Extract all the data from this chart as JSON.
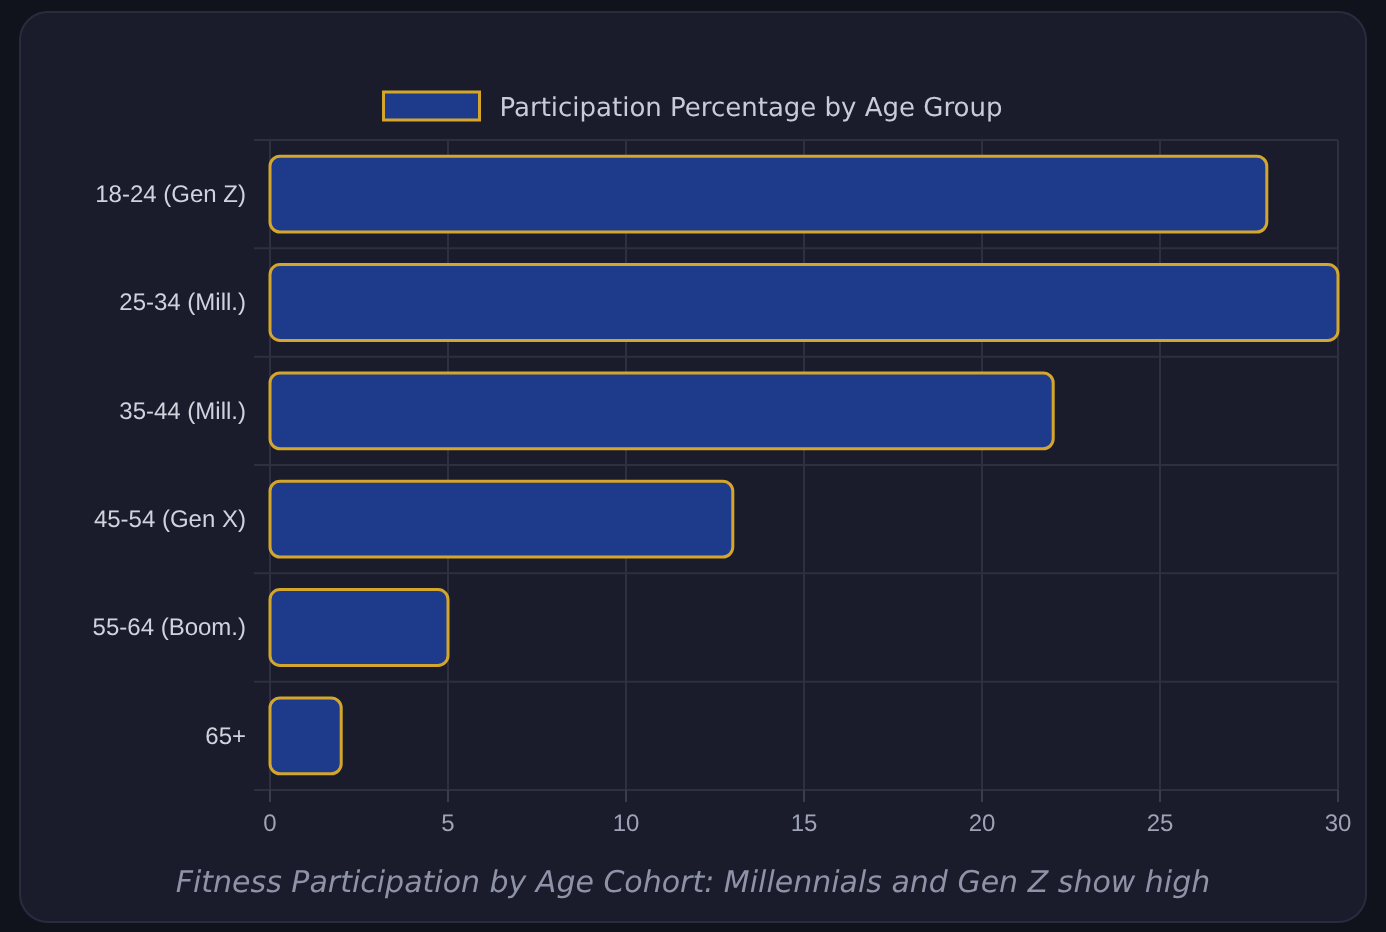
{
  "chart_data": {
    "type": "bar",
    "orientation": "horizontal",
    "title": "Fitness Participation by Age Cohort: Millennials and Gen Z show high",
    "categories": [
      "18-24 (Gen Z)",
      "25-34 (Mill.)",
      "35-44 (Mill.)",
      "45-54 (Gen X)",
      "55-64 (Boom.)",
      "65+"
    ],
    "series": [
      {
        "name": "Participation Percentage by Age Group",
        "color": "#1e3a8a",
        "values": [
          28,
          30,
          22,
          13,
          5,
          2
        ]
      }
    ],
    "xlim": [
      0,
      30
    ],
    "xticks": [
      0,
      5,
      10,
      15,
      20,
      25,
      30
    ],
    "grid": true,
    "legend": "top"
  }
}
